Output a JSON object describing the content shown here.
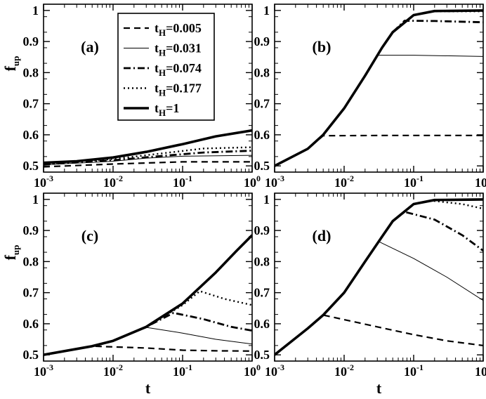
{
  "chart_data": [
    {
      "panel": "(a)",
      "type": "line",
      "xscale": "log",
      "xlim": [
        0.001,
        1
      ],
      "ylim": [
        0.48,
        1.02
      ],
      "xlabel": "",
      "ylabel": "f_up",
      "xticks": [
        "10^-3",
        "10^-2",
        "10^-1",
        "10^0"
      ],
      "yticks": [
        "0.5",
        "0.6",
        "0.7",
        "0.8",
        "0.9",
        "1"
      ],
      "legend": "top-left",
      "series": [
        {
          "name": "t_H=0.005",
          "style": "dashed",
          "x": [
            0.001,
            0.01,
            0.1,
            1
          ],
          "values": [
            0.497,
            0.506,
            0.513,
            0.513
          ]
        },
        {
          "name": "t_H=0.031",
          "style": "thin",
          "x": [
            0.001,
            0.01,
            0.03,
            0.1,
            1
          ],
          "values": [
            0.503,
            0.515,
            0.525,
            0.531,
            0.534
          ]
        },
        {
          "name": "t_H=0.074",
          "style": "dashdot",
          "x": [
            0.001,
            0.01,
            0.05,
            0.2,
            1
          ],
          "values": [
            0.505,
            0.518,
            0.532,
            0.543,
            0.549
          ]
        },
        {
          "name": "t_H=0.177",
          "style": "dotted",
          "x": [
            0.001,
            0.01,
            0.05,
            0.2,
            1
          ],
          "values": [
            0.507,
            0.522,
            0.54,
            0.556,
            0.56
          ]
        },
        {
          "name": "t_H=1",
          "style": "thick",
          "x": [
            0.001,
            0.003,
            0.01,
            0.03,
            0.1,
            0.3,
            1
          ],
          "values": [
            0.51,
            0.515,
            0.527,
            0.545,
            0.57,
            0.595,
            0.614
          ]
        }
      ]
    },
    {
      "panel": "(b)",
      "type": "line",
      "xscale": "log",
      "xlim": [
        0.001,
        1
      ],
      "ylim": [
        0.48,
        1.02
      ],
      "xlabel": "",
      "ylabel": "",
      "xticks": [
        "10^-3",
        "10^-2",
        "10^-1",
        "10^0"
      ],
      "yticks": [
        "0.5",
        "0.6",
        "0.7",
        "0.8",
        "0.9",
        "1"
      ],
      "series": [
        {
          "name": "t_H=0.005",
          "style": "dashed",
          "x": [
            0.001,
            0.003,
            0.005,
            0.05,
            1
          ],
          "values": [
            0.5,
            0.555,
            0.597,
            0.598,
            0.598
          ]
        },
        {
          "name": "t_H=0.031",
          "style": "thin",
          "x": [
            0.001,
            0.003,
            0.005,
            0.01,
            0.02,
            0.031,
            0.1,
            1
          ],
          "values": [
            0.5,
            0.555,
            0.6,
            0.685,
            0.79,
            0.856,
            0.856,
            0.852
          ]
        },
        {
          "name": "t_H=0.074",
          "style": "dashdot",
          "x": [
            0.001,
            0.003,
            0.005,
            0.01,
            0.02,
            0.035,
            0.05,
            0.074,
            0.2,
            1
          ],
          "values": [
            0.5,
            0.555,
            0.6,
            0.685,
            0.79,
            0.88,
            0.93,
            0.967,
            0.966,
            0.962
          ]
        },
        {
          "name": "t_H=0.177",
          "style": "dotted",
          "x": [
            0.001,
            0.003,
            0.005,
            0.01,
            0.02,
            0.035,
            0.05,
            0.1,
            0.177,
            1
          ],
          "values": [
            0.5,
            0.555,
            0.6,
            0.685,
            0.79,
            0.88,
            0.93,
            0.985,
            0.997,
            0.997
          ]
        },
        {
          "name": "t_H=1",
          "style": "thick",
          "x": [
            0.001,
            0.003,
            0.005,
            0.01,
            0.02,
            0.035,
            0.05,
            0.1,
            0.2,
            1
          ],
          "values": [
            0.5,
            0.555,
            0.6,
            0.685,
            0.79,
            0.88,
            0.93,
            0.985,
            0.998,
            1.0
          ]
        }
      ]
    },
    {
      "panel": "(c)",
      "type": "line",
      "xscale": "log",
      "xlim": [
        0.001,
        1
      ],
      "ylim": [
        0.48,
        1.02
      ],
      "xlabel": "t",
      "ylabel": "f_up",
      "xticks": [
        "10^-3",
        "10^-2",
        "10^-1",
        "10^0"
      ],
      "yticks": [
        "0.5",
        "0.6",
        "0.7",
        "0.8",
        "0.9",
        "1"
      ],
      "series": [
        {
          "name": "t_H=0.005",
          "style": "dashed",
          "x": [
            0.001,
            0.005,
            0.03,
            0.1,
            0.3,
            1
          ],
          "values": [
            0.5,
            0.528,
            0.522,
            0.515,
            0.513,
            0.512
          ]
        },
        {
          "name": "t_H=0.031",
          "style": "thin",
          "x": [
            0.001,
            0.005,
            0.01,
            0.031,
            0.1,
            0.3,
            1
          ],
          "values": [
            0.5,
            0.528,
            0.545,
            0.588,
            0.57,
            0.55,
            0.535
          ]
        },
        {
          "name": "t_H=0.074",
          "style": "dashdot",
          "x": [
            0.001,
            0.005,
            0.01,
            0.03,
            0.074,
            0.2,
            0.5,
            1
          ],
          "values": [
            0.5,
            0.528,
            0.545,
            0.59,
            0.635,
            0.615,
            0.59,
            0.578
          ]
        },
        {
          "name": "t_H=0.177",
          "style": "dotted",
          "x": [
            0.001,
            0.005,
            0.01,
            0.03,
            0.1,
            0.177,
            0.4,
            1
          ],
          "values": [
            0.5,
            0.528,
            0.545,
            0.59,
            0.66,
            0.705,
            0.68,
            0.66
          ]
        },
        {
          "name": "t_H=1",
          "style": "thick",
          "x": [
            0.001,
            0.005,
            0.01,
            0.03,
            0.1,
            0.3,
            0.6,
            1
          ],
          "values": [
            0.5,
            0.528,
            0.545,
            0.59,
            0.665,
            0.765,
            0.835,
            0.885
          ]
        }
      ]
    },
    {
      "panel": "(d)",
      "type": "line",
      "xscale": "log",
      "xlim": [
        0.001,
        1
      ],
      "ylim": [
        0.48,
        1.02
      ],
      "xlabel": "t",
      "ylabel": "",
      "xticks": [
        "10^-3",
        "10^-2",
        "10^-1",
        "10^0"
      ],
      "yticks": [
        "0.5",
        "0.6",
        "0.7",
        "0.8",
        "0.9",
        "1"
      ],
      "series": [
        {
          "name": "t_H=0.005",
          "style": "dashed",
          "x": [
            0.001,
            0.003,
            0.005,
            0.03,
            0.1,
            0.3,
            1
          ],
          "values": [
            0.5,
            0.585,
            0.628,
            0.59,
            0.565,
            0.545,
            0.53
          ]
        },
        {
          "name": "t_H=0.031",
          "style": "thin",
          "x": [
            0.001,
            0.003,
            0.005,
            0.01,
            0.02,
            0.031,
            0.1,
            0.3,
            1
          ],
          "values": [
            0.5,
            0.585,
            0.628,
            0.7,
            0.8,
            0.865,
            0.81,
            0.75,
            0.675
          ]
        },
        {
          "name": "t_H=0.074",
          "style": "dashdot",
          "x": [
            0.001,
            0.003,
            0.005,
            0.01,
            0.02,
            0.035,
            0.05,
            0.074,
            0.2,
            0.5,
            1
          ],
          "values": [
            0.5,
            0.585,
            0.628,
            0.7,
            0.8,
            0.88,
            0.93,
            0.96,
            0.935,
            0.885,
            0.835
          ]
        },
        {
          "name": "t_H=0.177",
          "style": "dotted",
          "x": [
            0.001,
            0.003,
            0.005,
            0.01,
            0.02,
            0.035,
            0.05,
            0.1,
            0.177,
            0.5,
            1
          ],
          "values": [
            0.5,
            0.585,
            0.628,
            0.7,
            0.8,
            0.88,
            0.93,
            0.985,
            0.996,
            0.985,
            0.97
          ]
        },
        {
          "name": "t_H=1",
          "style": "thick",
          "x": [
            0.001,
            0.003,
            0.005,
            0.01,
            0.02,
            0.035,
            0.05,
            0.1,
            0.2,
            1
          ],
          "values": [
            0.5,
            0.585,
            0.628,
            0.7,
            0.8,
            0.88,
            0.93,
            0.985,
            0.998,
            1.0
          ]
        }
      ]
    }
  ]
}
